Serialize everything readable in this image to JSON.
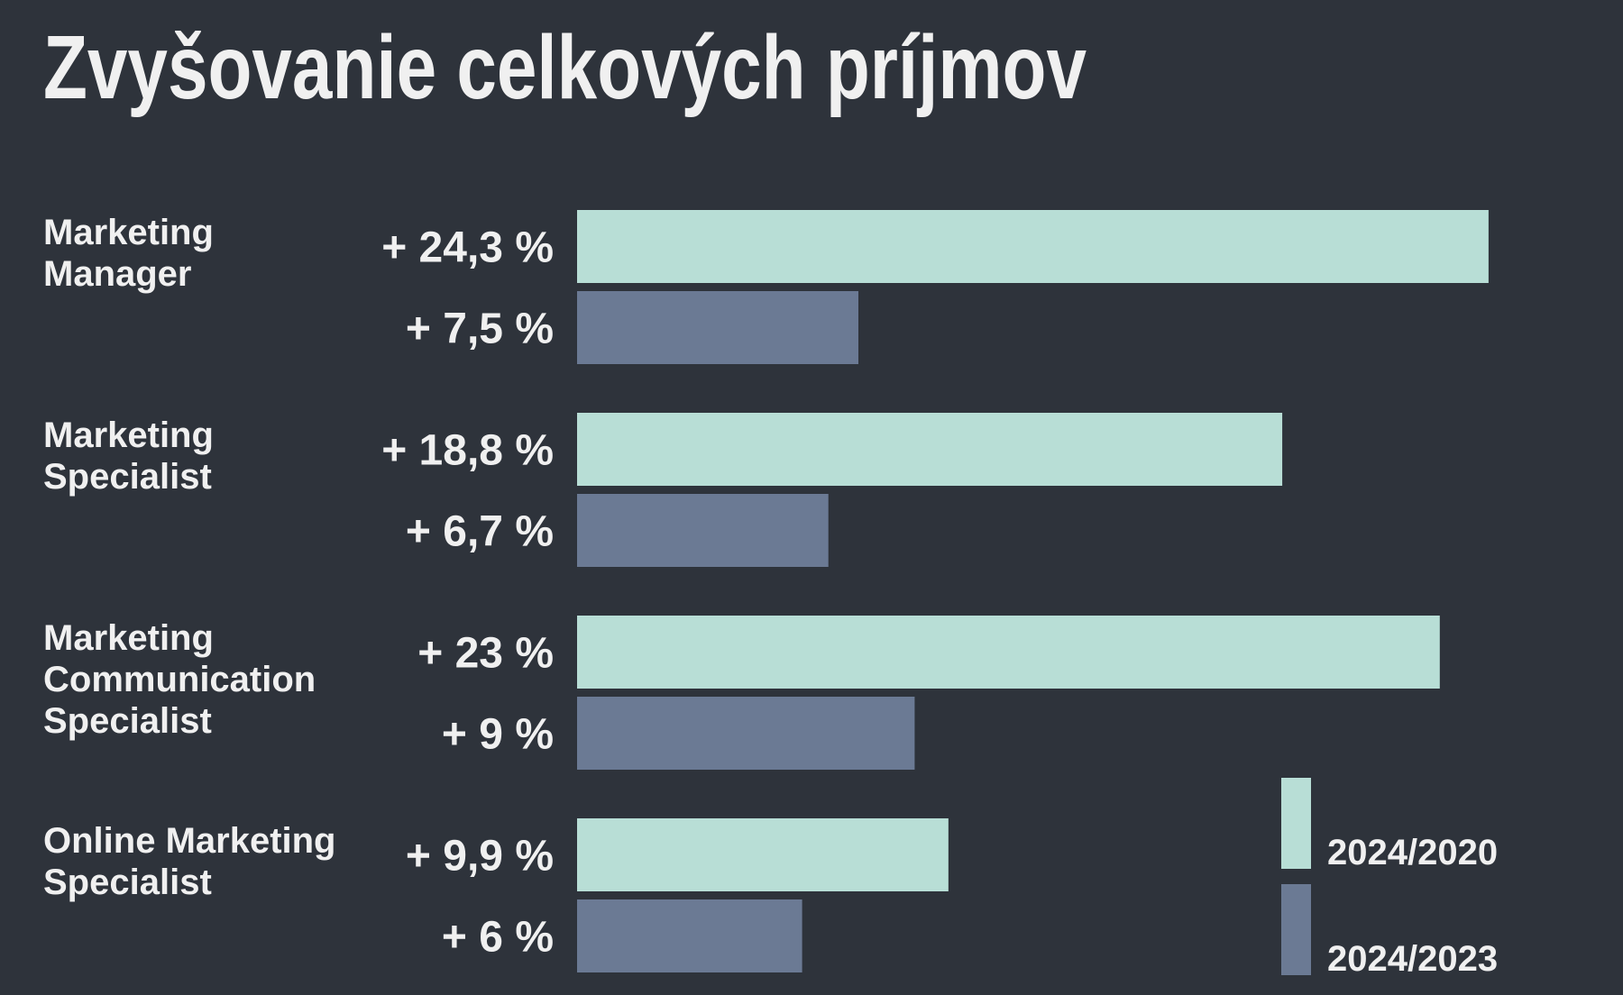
{
  "chart_data": {
    "type": "bar",
    "orientation": "horizontal",
    "title": "Zvyšovanie celkových príjmov",
    "categories": [
      "Marketing Manager",
      "Marketing Specialist",
      "Marketing Communication Specialist",
      "Online Marketing Specialist"
    ],
    "series": [
      {
        "name": "2024/2020",
        "color": "#b8ded6",
        "values": [
          24.3,
          18.8,
          23,
          9.9
        ],
        "value_labels": [
          "+ 24,3 %",
          "+ 18,8 %",
          "+ 23 %",
          "+ 9,9 %"
        ]
      },
      {
        "name": "2024/2023",
        "color": "#6b7a94",
        "values": [
          7.5,
          6.7,
          9,
          6
        ],
        "value_labels": [
          "+ 7,5 %",
          "+ 6,7 %",
          "+ 9 %",
          "+ 6 %"
        ]
      }
    ]
  }
}
